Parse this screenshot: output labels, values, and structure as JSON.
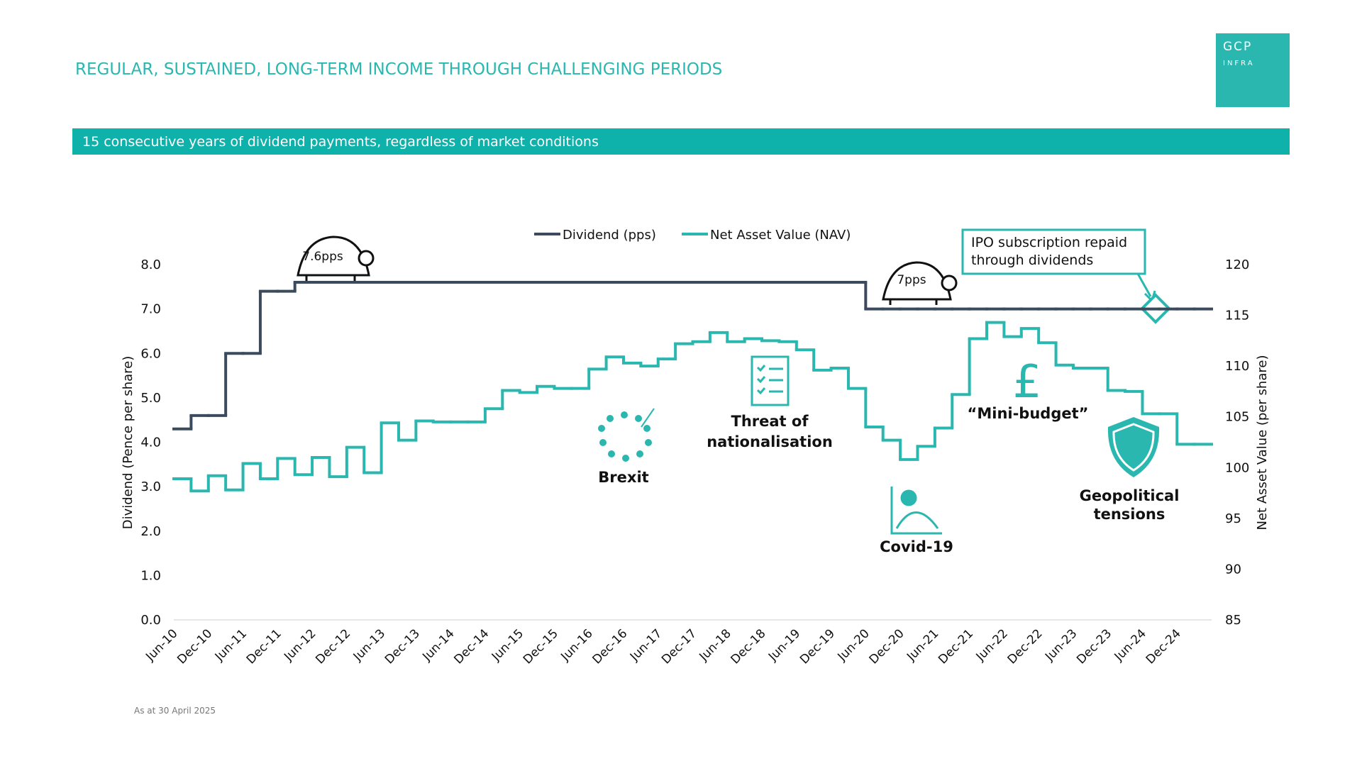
{
  "title": "REGULAR, SUSTAINED, LONG-TERM INCOME THROUGH CHALLENGING PERIODS",
  "logo": [
    "GCP",
    "INFRA"
  ],
  "banner": "15 consecutive years of dividend payments, regardless of market conditions",
  "footnote": "As at 30 April 2025",
  "chart_data": {
    "type": "line",
    "step": true,
    "ylabel": "Dividend (Pence per share)",
    "y2label": "Net Asset Value (per share)",
    "categories": [
      "Jun-10",
      null,
      "Dec-10",
      null,
      "Jun-11",
      null,
      "Dec-11",
      null,
      "Jun-12",
      null,
      "Dec-12",
      null,
      "Jun-13",
      null,
      "Dec-13",
      null,
      "Jun-14",
      null,
      "Dec-14",
      null,
      "Jun-15",
      null,
      "Dec-15",
      null,
      "Jun-16",
      null,
      "Dec-16",
      null,
      "Jun-17",
      null,
      "Dec-17",
      null,
      "Jun-18",
      null,
      "Dec-18",
      null,
      "Jun-19",
      null,
      "Dec-19",
      null,
      "Jun-20",
      null,
      "Dec-20",
      null,
      "Jun-21",
      null,
      "Dec-21",
      null,
      "Jun-22",
      null,
      "Dec-22",
      null,
      "Jun-23",
      null,
      "Dec-23",
      null,
      "Jun-24",
      null,
      "Dec-24",
      null
    ],
    "series": [
      {
        "name": "Dividend (pps)",
        "color": "#3b4a5c",
        "values": [
          4.3,
          4.6,
          4.6,
          6.0,
          6.0,
          7.4,
          7.4,
          7.6,
          7.6,
          7.6,
          7.6,
          7.6,
          7.6,
          7.6,
          7.6,
          7.6,
          7.6,
          7.6,
          7.6,
          7.6,
          7.6,
          7.6,
          7.6,
          7.6,
          7.6,
          7.6,
          7.6,
          7.6,
          7.6,
          7.6,
          7.6,
          7.6,
          7.6,
          7.6,
          7.6,
          7.6,
          7.6,
          7.6,
          7.6,
          7.6,
          7.0,
          7.0,
          7.0,
          7.0,
          7.0,
          7.0,
          7.0,
          7.0,
          7.0,
          7.0,
          7.0,
          7.0,
          7.0,
          7.0,
          7.0,
          7.0,
          7.0,
          7.0,
          7.0,
          7.0
        ]
      },
      {
        "name": "Net Asset Value (NAV)",
        "color": "#2ab7b0",
        "axis": "y2",
        "values": [
          98.9,
          97.7,
          99.2,
          97.8,
          100.4,
          98.9,
          100.9,
          99.3,
          101.0,
          99.1,
          102.0,
          99.5,
          104.4,
          102.7,
          104.6,
          104.5,
          104.5,
          104.5,
          105.8,
          107.6,
          107.4,
          108.0,
          107.8,
          107.8,
          109.7,
          110.9,
          110.3,
          110.0,
          110.7,
          112.2,
          112.4,
          113.3,
          112.4,
          112.7,
          112.5,
          112.4,
          111.6,
          109.6,
          109.8,
          107.8,
          104.0,
          102.7,
          100.8,
          102.1,
          103.9,
          107.2,
          112.7,
          114.3,
          112.9,
          113.7,
          112.3,
          110.1,
          109.8,
          109.8,
          107.6,
          107.5,
          105.3,
          105.3,
          102.3,
          102.3
        ]
      }
    ],
    "ylim": [
      0,
      8
    ],
    "yticks": [
      {
        "value": 0,
        "label": "0.0"
      },
      {
        "value": 1,
        "label": "1.0"
      },
      {
        "value": 2,
        "label": "2.0"
      },
      {
        "value": 3,
        "label": "3.0"
      },
      {
        "value": 4,
        "label": "4.0"
      },
      {
        "value": 5,
        "label": "5.0"
      },
      {
        "value": 6,
        "label": "6.0"
      },
      {
        "value": 7,
        "label": "7.0"
      },
      {
        "value": 8,
        "label": "8.0"
      }
    ],
    "y2lim": [
      85,
      120
    ],
    "y2ticks": [
      85,
      90,
      95,
      100,
      105,
      110,
      115,
      120
    ],
    "legend": "top",
    "annotations": [
      "7.6pps",
      "7pps",
      "IPO subscription repaid through dividends",
      "Brexit",
      "Threat of nationalisation",
      "Covid-19",
      "“Mini-budget”",
      "Geopolitical tensions"
    ]
  }
}
